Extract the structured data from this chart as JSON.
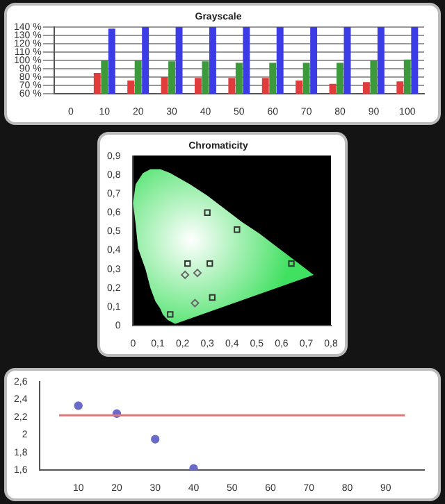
{
  "chart_data": [
    {
      "type": "bar",
      "title": "Grayscale",
      "categories": [
        "0",
        "10",
        "20",
        "30",
        "40",
        "50",
        "60",
        "70",
        "80",
        "90",
        "100"
      ],
      "series": [
        {
          "color": "#e03c3c",
          "values": [
            null,
            85,
            76,
            80,
            79,
            79,
            79,
            76,
            72,
            74,
            75
          ]
        },
        {
          "color": "#3c9a3c",
          "values": [
            null,
            100,
            100,
            99,
            99,
            97,
            97,
            97,
            97,
            100,
            101
          ]
        },
        {
          "color": "#3c3ce6",
          "values": [
            null,
            138,
            140,
            140,
            140,
            140,
            140,
            140,
            140,
            140,
            140
          ]
        }
      ],
      "ylim": [
        60,
        140
      ],
      "yticks": [
        {
          "value": 60,
          "label": "60 %"
        },
        {
          "value": 70,
          "label": "70 %"
        },
        {
          "value": 80,
          "label": "80 %"
        },
        {
          "value": 90,
          "label": "90 %"
        },
        {
          "value": 100,
          "label": "100 %"
        },
        {
          "value": 110,
          "label": "110 %"
        },
        {
          "value": 120,
          "label": "120 %"
        },
        {
          "value": 130,
          "label": "130 %"
        },
        {
          "value": 140,
          "label": "140 %"
        }
      ],
      "grid": "y",
      "legend": false
    },
    {
      "type": "scatter",
      "title": "Chromaticity",
      "series": [
        {
          "color": "#333333",
          "marker": "square",
          "x": [
            0.3,
            0.42,
            0.64,
            0.15,
            0.22,
            0.31,
            0.32
          ],
          "values": [
            0.6,
            0.51,
            0.33,
            0.06,
            0.33,
            0.33,
            0.15
          ]
        },
        {
          "color": "#666666",
          "marker": "diamond",
          "x": [
            0.21,
            0.26,
            0.25
          ],
          "values": [
            0.27,
            0.28,
            0.12
          ]
        },
        {
          "type": "area",
          "color": "#40e060",
          "x": [
            0.17,
            0.14,
            0.12,
            0.11,
            0.09,
            0.07,
            0.05,
            0.02,
            0.01,
            0.0,
            0.01,
            0.04,
            0.07,
            0.11,
            0.15,
            0.23,
            0.3,
            0.37,
            0.44,
            0.51,
            0.58,
            0.63,
            0.69,
            0.73
          ],
          "values": [
            0.01,
            0.03,
            0.06,
            0.09,
            0.13,
            0.2,
            0.3,
            0.41,
            0.54,
            0.65,
            0.75,
            0.81,
            0.83,
            0.83,
            0.81,
            0.75,
            0.69,
            0.62,
            0.55,
            0.49,
            0.42,
            0.37,
            0.31,
            0.27
          ]
        }
      ],
      "xlim": [
        0,
        0.8
      ],
      "xticks": [
        {
          "value": 0,
          "label": "0"
        },
        {
          "value": 0.1,
          "label": "0,1"
        },
        {
          "value": 0.2,
          "label": "0,2"
        },
        {
          "value": 0.3,
          "label": "0,3"
        },
        {
          "value": 0.4,
          "label": "0,4"
        },
        {
          "value": 0.5,
          "label": "0,5"
        },
        {
          "value": 0.6,
          "label": "0,6"
        },
        {
          "value": 0.7,
          "label": "0,7"
        },
        {
          "value": 0.8,
          "label": "0,8"
        }
      ],
      "ylim": [
        0,
        0.9
      ],
      "yticks": [
        {
          "value": 0,
          "label": "0"
        },
        {
          "value": 0.1,
          "label": "0,1"
        },
        {
          "value": 0.2,
          "label": "0,2"
        },
        {
          "value": 0.3,
          "label": "0,3"
        },
        {
          "value": 0.4,
          "label": "0,4"
        },
        {
          "value": 0.5,
          "label": "0,5"
        },
        {
          "value": 0.6,
          "label": "0,6"
        },
        {
          "value": 0.7,
          "label": "0,7"
        },
        {
          "value": 0.8,
          "label": "0,8"
        },
        {
          "value": 0.9,
          "label": "0,9"
        }
      ],
      "grid": false,
      "legend": false
    },
    {
      "type": "scatter",
      "series": [
        {
          "type": "line",
          "color": "#e87070",
          "marker": "none",
          "x": [
            5,
            95
          ],
          "values": [
            2.22,
            2.22
          ]
        },
        {
          "type": "scatter",
          "color": "#6a6ac8",
          "marker": "circle",
          "x": [
            10,
            20,
            30,
            40
          ],
          "values": [
            2.33,
            2.24,
            1.95,
            1.62
          ]
        }
      ],
      "xlim": [
        0,
        100
      ],
      "xticks": [
        10,
        20,
        30,
        40,
        50,
        60,
        70,
        80,
        90
      ],
      "ylim": [
        1.6,
        2.6
      ],
      "yticks": [
        {
          "value": 1.6,
          "label": "1,6"
        },
        {
          "value": 1.8,
          "label": "1,8"
        },
        {
          "value": 2,
          "label": "2"
        },
        {
          "value": 2.2,
          "label": "2,2"
        },
        {
          "value": 2.4,
          "label": "2,4"
        },
        {
          "value": 2.6,
          "label": "2,6"
        }
      ],
      "grid": false,
      "legend": false
    }
  ]
}
